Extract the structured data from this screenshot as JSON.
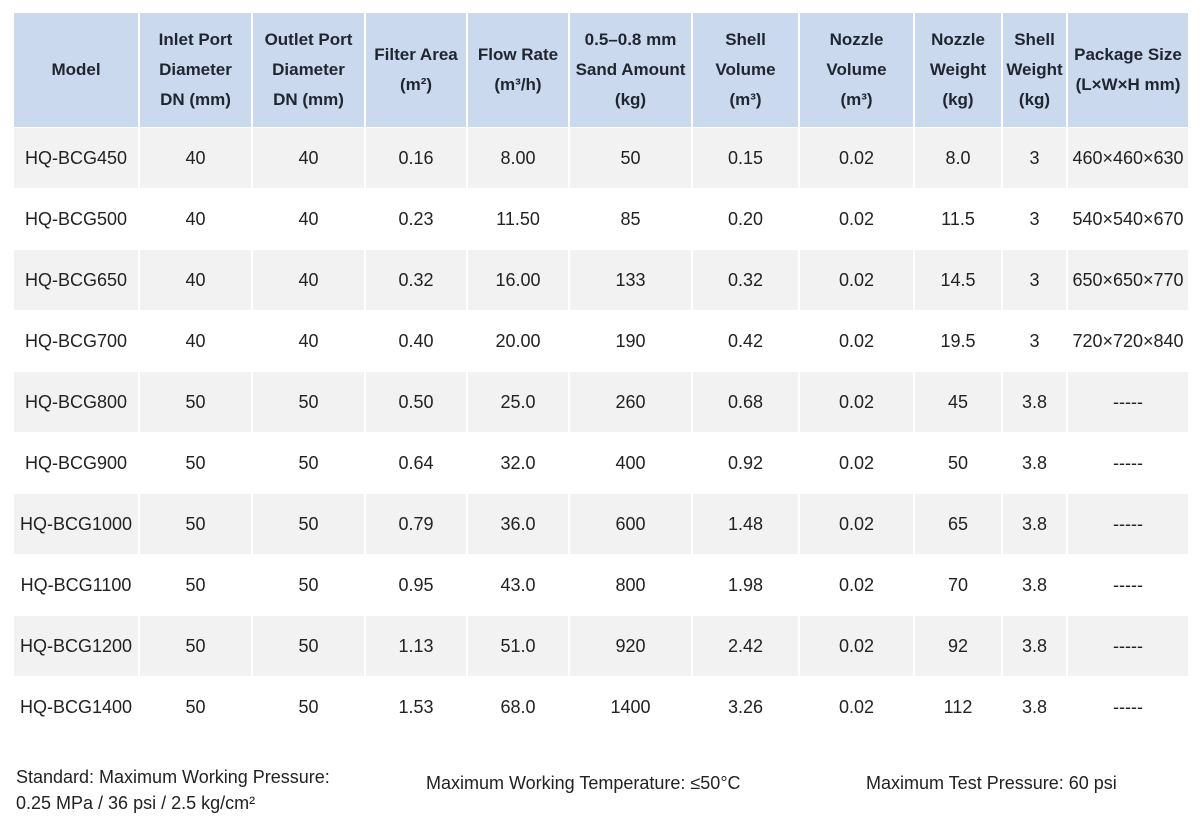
{
  "columns": [
    {
      "lines": [
        "Model"
      ]
    },
    {
      "lines": [
        "Inlet Port",
        "Diameter",
        "DN (mm)"
      ]
    },
    {
      "lines": [
        "Outlet Port",
        "Diameter",
        "DN (mm)"
      ]
    },
    {
      "lines": [
        "Filter Area",
        "(m²)"
      ]
    },
    {
      "lines": [
        "Flow Rate",
        "(m³/h)"
      ]
    },
    {
      "lines": [
        "0.5–0.8 mm",
        "Sand Amount",
        "(kg)"
      ]
    },
    {
      "lines": [
        "Shell Volume",
        "(m³)"
      ]
    },
    {
      "lines": [
        "Nozzle Volume",
        "(m³)"
      ]
    },
    {
      "lines": [
        "Nozzle",
        "Weight",
        "(kg)"
      ]
    },
    {
      "lines": [
        "Shell",
        "Weight",
        "(kg)"
      ]
    },
    {
      "lines": [
        "Package Size",
        "(L×W×H mm)"
      ]
    }
  ],
  "rows": [
    [
      "HQ-BCG450",
      "40",
      "40",
      "0.16",
      "8.00",
      "50",
      "0.15",
      "0.02",
      "8.0",
      "3",
      "460×460×630"
    ],
    [
      "HQ-BCG500",
      "40",
      "40",
      "0.23",
      "11.50",
      "85",
      "0.20",
      "0.02",
      "11.5",
      "3",
      "540×540×670"
    ],
    [
      "HQ-BCG650",
      "40",
      "40",
      "0.32",
      "16.00",
      "133",
      "0.32",
      "0.02",
      "14.5",
      "3",
      "650×650×770"
    ],
    [
      "HQ-BCG700",
      "40",
      "40",
      "0.40",
      "20.00",
      "190",
      "0.42",
      "0.02",
      "19.5",
      "3",
      "720×720×840"
    ],
    [
      "HQ-BCG800",
      "50",
      "50",
      "0.50",
      "25.0",
      "260",
      "0.68",
      "0.02",
      "45",
      "3.8",
      "-----"
    ],
    [
      "HQ-BCG900",
      "50",
      "50",
      "0.64",
      "32.0",
      "400",
      "0.92",
      "0.02",
      "50",
      "3.8",
      "-----"
    ],
    [
      "HQ-BCG1000",
      "50",
      "50",
      "0.79",
      "36.0",
      "600",
      "1.48",
      "0.02",
      "65",
      "3.8",
      "-----"
    ],
    [
      "HQ-BCG1100",
      "50",
      "50",
      "0.95",
      "43.0",
      "800",
      "1.98",
      "0.02",
      "70",
      "3.8",
      "-----"
    ],
    [
      "HQ-BCG1200",
      "50",
      "50",
      "1.13",
      "51.0",
      "920",
      "2.42",
      "0.02",
      "92",
      "3.8",
      "-----"
    ],
    [
      "HQ-BCG1400",
      "50",
      "50",
      "1.53",
      "68.0",
      "1400",
      "3.26",
      "0.02",
      "112",
      "3.8",
      "-----"
    ]
  ],
  "footer": {
    "standard_line1": "Standard: Maximum Working Pressure:",
    "standard_line2": "0.25 MPa / 36 psi / 2.5 kg/cm²",
    "max_temp": "Maximum Working Temperature: ≤50°C",
    "max_test_pressure": "Maximum Test Pressure: 60 psi"
  },
  "colors": {
    "header_bg": "#cad9ed",
    "row_alt_bg": "#f2f2f2",
    "row_bg": "#ffffff"
  }
}
